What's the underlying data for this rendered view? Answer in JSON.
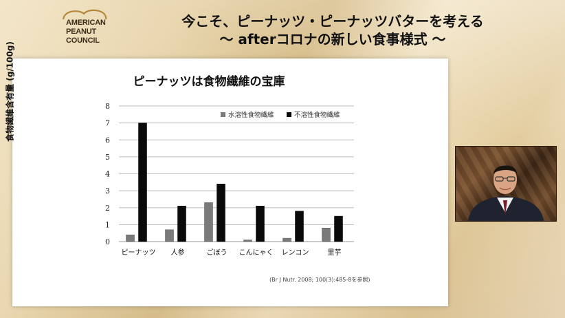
{
  "logo": {
    "lines": [
      "AMERICAN",
      "PEANUT",
      "COUNCIL"
    ]
  },
  "headline": {
    "line1": "今こそ、ピーナッツ・ピーナッツバターを考える",
    "line2": "〜 afterコロナの新しい食事様式 〜"
  },
  "source_note": "(Br J Nutr. 2008; 100(3):485-8を参照)",
  "colors": {
    "soluble": "#7a7a7a",
    "insoluble": "#0a0a0a",
    "grid": "#bdbdbd"
  },
  "chart_data": {
    "type": "bar",
    "title": "ピーナッツは食物繊維の宝庫",
    "ylabel": "食物繊維含有量 (g/100g)",
    "xlabel": "",
    "ylim": [
      0,
      8
    ],
    "yticks": [
      0,
      1,
      2,
      3,
      4,
      5,
      6,
      7,
      8
    ],
    "grid": true,
    "legend_position": "top-right",
    "categories": [
      "ピーナッツ",
      "人参",
      "ごぼう",
      "こんにゃく",
      "レンコン",
      "里芋"
    ],
    "series": [
      {
        "name": "水溶性食物繊維",
        "values": [
          0.4,
          0.7,
          2.3,
          0.1,
          0.2,
          0.8
        ]
      },
      {
        "name": "不溶性食物繊維",
        "values": [
          7.0,
          2.1,
          3.4,
          2.1,
          1.8,
          1.5
        ]
      }
    ]
  }
}
